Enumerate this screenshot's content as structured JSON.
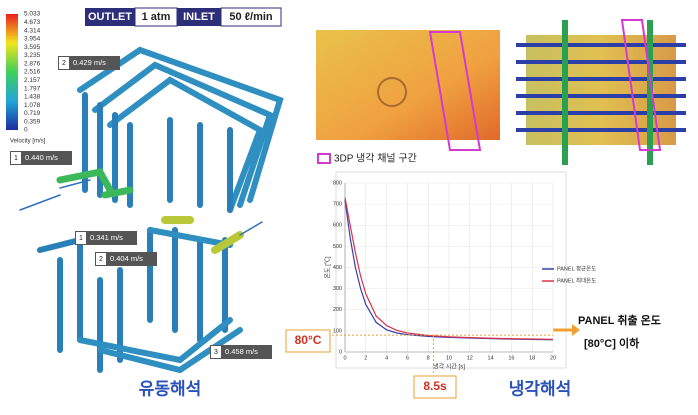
{
  "flow_panel": {
    "header": {
      "outlet": "OUTLET",
      "outlet_value": "1 atm",
      "inlet": "INLET",
      "inlet_value": "50 ℓ/min"
    },
    "colorbar": {
      "title": "Velocity [m/s]",
      "ticks": [
        5.033,
        4.673,
        4.314,
        3.954,
        3.595,
        3.235,
        2.876,
        2.516,
        2.157,
        1.797,
        1.438,
        1.078,
        0.719,
        0.359,
        0
      ]
    },
    "probes": [
      {
        "id": "2",
        "label": "0.429 m/s"
      },
      {
        "id": "1",
        "label": "0.440 m/s"
      },
      {
        "id": "1",
        "label": "0.341 m/s"
      },
      {
        "id": "2",
        "label": "0.404 m/s"
      },
      {
        "id": "3",
        "label": "0.458 m/s"
      }
    ],
    "caption": "유동해석"
  },
  "cooling_panel": {
    "legend": "3DP 냉각 채널 구간",
    "note_line1": "PANEL 취출 온도",
    "note_line2": "[80°C] 이하",
    "caption": "냉각해석"
  },
  "chart_data": {
    "type": "line",
    "x_label": "냉각 시간 [s]",
    "y_label": "온도 [℃]",
    "x": [
      0,
      0.5,
      1,
      1.5,
      2,
      3,
      4,
      5,
      6,
      8,
      10,
      12,
      15,
      20
    ],
    "series": [
      {
        "name": "PANEL 평균온도",
        "color": "#3a3ea8",
        "values": [
          720,
          540,
          400,
          300,
          225,
          140,
          105,
          90,
          82,
          74,
          69,
          66,
          62,
          58
        ]
      },
      {
        "name": "PANEL 최대온도",
        "color": "#d8344a",
        "values": [
          730,
          600,
          470,
          360,
          275,
          170,
          125,
          102,
          90,
          78,
          72,
          68,
          64,
          60
        ]
      }
    ],
    "xlim": [
      0,
      20
    ],
    "xticks": [
      0,
      2,
      4,
      6,
      8,
      10,
      12,
      14,
      16,
      18,
      20
    ],
    "ylim": [
      0,
      800
    ],
    "yticks": [
      0,
      100,
      200,
      300,
      400,
      500,
      600,
      700,
      800
    ],
    "grid": true,
    "hline": {
      "value": 80,
      "label": "80°C"
    },
    "vline": {
      "value": 8.5,
      "label": "8.5s"
    }
  }
}
